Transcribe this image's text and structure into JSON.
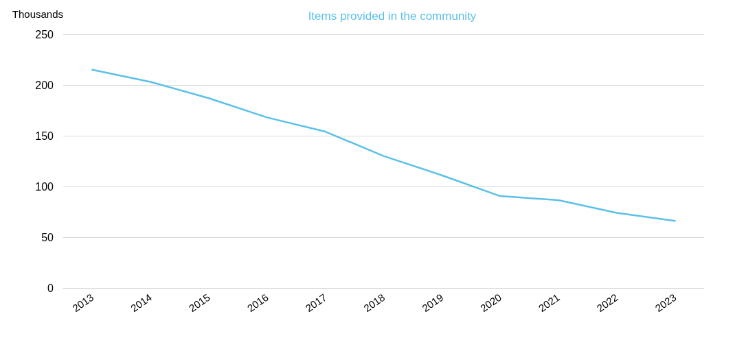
{
  "chart_data": {
    "type": "line",
    "title": "Items provided in the community",
    "ylabel": "Thousands",
    "categories": [
      "2013",
      "2014",
      "2015",
      "2016",
      "2017",
      "2018",
      "2019",
      "2020",
      "2021",
      "2022",
      "2023"
    ],
    "series": [
      {
        "color": "#5bc0e8",
        "values": [
          215,
          203,
          187,
          168,
          154,
          130,
          111,
          90.5,
          86.5,
          74,
          66
        ]
      }
    ],
    "ylim": [
      0,
      250
    ],
    "yticks": [
      0,
      50,
      100,
      150,
      200,
      250
    ],
    "grid": "y",
    "marker": "none",
    "line_style": "solid"
  }
}
